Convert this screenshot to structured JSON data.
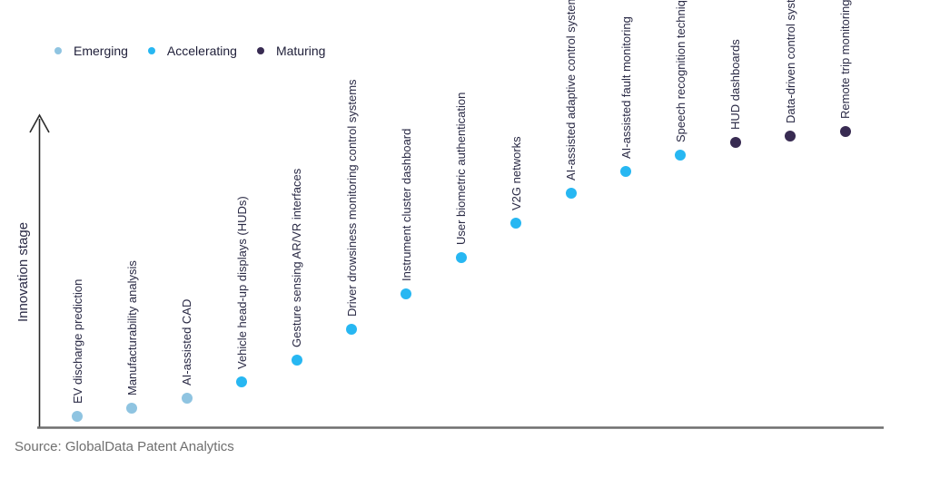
{
  "legend": {
    "items": [
      {
        "label": "Emerging",
        "color": "#8FC4E1"
      },
      {
        "label": "Accelerating",
        "color": "#27B7F2"
      },
      {
        "label": "Maturing",
        "color": "#382B52"
      }
    ]
  },
  "source": "Source: GlobalData Patent Analytics",
  "colors": {
    "background": "#FFFFFF",
    "label_text": "#2A2A45",
    "legend_text": "#1E1E38",
    "y_axis": "#2B2B2B",
    "x_baseline": "#6E6E6E",
    "source_text": "#6F6F6F"
  },
  "chart_data": {
    "type": "scatter",
    "title": "",
    "xlabel": "",
    "ylabel": "Innovation stage",
    "grid": false,
    "legend_position": "top-left",
    "y_axis": {
      "style": "arrow-no-ticks",
      "range_normalized": [
        0,
        1
      ]
    },
    "x_axis": {
      "style": "baseline-no-ticks",
      "ordering": "rank 1..15 left to right"
    },
    "stages": [
      "Emerging",
      "Accelerating",
      "Maturing"
    ],
    "points": [
      {
        "rank": 1,
        "label": "EV discharge prediction",
        "stage": "Emerging",
        "level": 0.035
      },
      {
        "rank": 2,
        "label": "Manufacturability analysis",
        "stage": "Emerging",
        "level": 0.061
      },
      {
        "rank": 3,
        "label": "AI-assisted CAD",
        "stage": "Emerging",
        "level": 0.093
      },
      {
        "rank": 4,
        "label": "Vehicle head-up displays (HUDs)",
        "stage": "Accelerating",
        "level": 0.145
      },
      {
        "rank": 5,
        "label": "Gesture sensing AR/VR interfaces",
        "stage": "Accelerating",
        "level": 0.215
      },
      {
        "rank": 6,
        "label": "Driver drowsiness monitoring control systems",
        "stage": "Accelerating",
        "level": 0.314
      },
      {
        "rank": 7,
        "label": "Instrument cluster dashboard",
        "stage": "Accelerating",
        "level": 0.427
      },
      {
        "rank": 8,
        "label": "User biometric authentication",
        "stage": "Accelerating",
        "level": 0.544
      },
      {
        "rank": 9,
        "label": "V2G networks",
        "stage": "Accelerating",
        "level": 0.654
      },
      {
        "rank": 10,
        "label": "AI-assisted adaptive control systems",
        "stage": "Accelerating",
        "level": 0.75
      },
      {
        "rank": 11,
        "label": "AI-assisted fault monitoring",
        "stage": "Accelerating",
        "level": 0.82
      },
      {
        "rank": 12,
        "label": "Speech recognition techniques",
        "stage": "Accelerating",
        "level": 0.872
      },
      {
        "rank": 13,
        "label": "HUD dashboards",
        "stage": "Maturing",
        "level": 0.913
      },
      {
        "rank": 14,
        "label": "Data-driven control systems",
        "stage": "Maturing",
        "level": 0.933
      },
      {
        "rank": 15,
        "label": "Remote trip monitoring",
        "stage": "Maturing",
        "level": 0.948
      }
    ]
  }
}
